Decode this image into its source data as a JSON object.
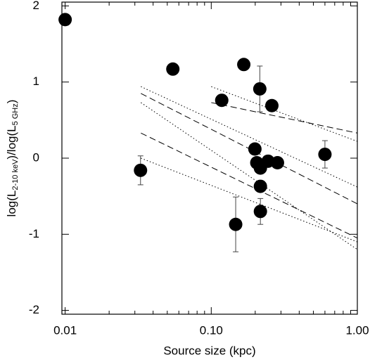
{
  "chart_data": {
    "type": "scatter",
    "xlabel": "Source size (kpc)",
    "ylabel": [
      "log(L",
      "2-10 keV",
      ")/log(L",
      "5 GHz",
      ")"
    ],
    "xlog": true,
    "xlim": [
      0.0095,
      1.0
    ],
    "ylim": [
      -2.05,
      2.05
    ],
    "xticks": [
      0.01,
      {
        "value": 0.1,
        "label": "0.10"
      },
      {
        "value": 1.0,
        "label": "1.00"
      }
    ],
    "xminorticks": [
      0.02,
      0.03,
      0.04,
      0.05,
      0.06,
      0.07,
      0.08,
      0.09,
      0.2,
      0.3,
      0.4,
      0.5,
      0.6,
      0.7,
      0.8,
      0.9
    ],
    "yticks": [
      2,
      1,
      0,
      -1,
      -2
    ],
    "color": "#000000",
    "x": [
      0.01,
      0.0328,
      0.0546,
      0.147,
      0.118,
      0.167,
      0.215,
      0.26,
      0.199,
      0.205,
      0.217,
      0.245,
      0.217,
      0.217,
      0.284,
      0.6
    ],
    "values": [
      1.82,
      -0.16,
      1.17,
      -0.87,
      0.76,
      1.23,
      0.91,
      0.69,
      0.12,
      -0.06,
      -0.13,
      -0.04,
      -0.37,
      -0.7,
      -0.06,
      0.05
    ],
    "errors": [
      null,
      0.19,
      null,
      0.36,
      null,
      null,
      0.3,
      null,
      null,
      null,
      null,
      null,
      null,
      0.17,
      null,
      0.18
    ],
    "lines": [
      {
        "style": "dotted",
        "x": [
          0.1,
          1.0
        ],
        "values": [
          0.94,
          0.22
        ]
      },
      {
        "style": "dotted",
        "x": [
          0.033,
          1.0
        ],
        "values": [
          0.94,
          -0.38
        ]
      },
      {
        "style": "dotted",
        "x": [
          0.033,
          1.0
        ],
        "values": [
          0.73,
          -1.2
        ]
      },
      {
        "style": "dotted",
        "x": [
          0.033,
          1.0
        ],
        "values": [
          0.0,
          -1.1
        ]
      },
      {
        "style": "dashed",
        "x": [
          0.1,
          1.0
        ],
        "values": [
          0.73,
          0.33
        ]
      },
      {
        "style": "dashed",
        "x": [
          0.033,
          1.0
        ],
        "values": [
          0.85,
          -0.6
        ]
      },
      {
        "style": "dashed",
        "x": [
          0.033,
          1.0
        ],
        "values": [
          0.33,
          -1.05
        ]
      }
    ]
  }
}
